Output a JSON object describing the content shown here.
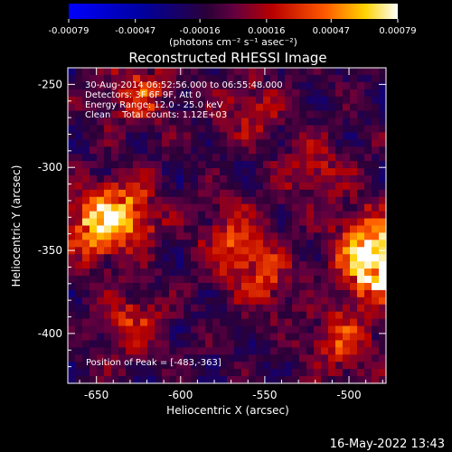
{
  "chart_data": {
    "type": "heatmap",
    "title": "Reconstructed RHESSI Image",
    "xlabel": "Heliocentric X (arcsec)",
    "ylabel": "Heliocentric Y (arcsec)",
    "xlim": [
      -667,
      -478
    ],
    "ylim": [
      -430,
      -240
    ],
    "xticks": [
      -650,
      -600,
      -550,
      -500
    ],
    "xtick_labels": [
      "-650",
      "-600",
      "-550",
      "-500"
    ],
    "yticks": [
      -250,
      -300,
      -350,
      -400
    ],
    "ytick_labels": [
      "-250",
      "-300",
      "-350",
      "-400"
    ],
    "colorbar": {
      "min": -0.00079,
      "max": 0.00079,
      "ticks": [
        -0.00079,
        -0.00047,
        -0.00016,
        0.00016,
        0.00047,
        0.00079
      ],
      "tick_labels": [
        "-0.00079",
        "-0.00047",
        "-0.00016",
        "0.00016",
        "0.00047",
        "0.00079"
      ],
      "unit_label": "(photons cm⁻² s⁻¹ asec⁻²)"
    },
    "annotations": [
      "30-Aug-2014 06:52:56.000 to 06:55:48.000",
      "Detectors: 3F 6F 9F, Att 0",
      "Energy Range: 12.0 - 25.0 keV",
      "Clean    Total counts: 1.12E+03"
    ],
    "peak_label": "Position of Peak = [-483,-363]",
    "peak": {
      "x": -483,
      "y": -363
    },
    "hot_regions": [
      {
        "x": -650,
        "y": -335,
        "level": 0.9
      },
      {
        "x": -632,
        "y": -327,
        "level": 0.75
      },
      {
        "x": -570,
        "y": -340,
        "level": 0.55
      },
      {
        "x": -553,
        "y": -365,
        "level": 0.6
      },
      {
        "x": -488,
        "y": -345,
        "level": 0.85
      },
      {
        "x": -483,
        "y": -363,
        "level": 1.0
      },
      {
        "x": -505,
        "y": -405,
        "level": 0.6
      },
      {
        "x": -625,
        "y": -255,
        "level": 0.55
      },
      {
        "x": -630,
        "y": -395,
        "level": 0.5
      },
      {
        "x": -560,
        "y": -265,
        "level": 0.45
      },
      {
        "x": -520,
        "y": -300,
        "level": 0.45
      }
    ],
    "grid": false
  },
  "footer": {
    "date": "16-May-2022 13:43"
  }
}
